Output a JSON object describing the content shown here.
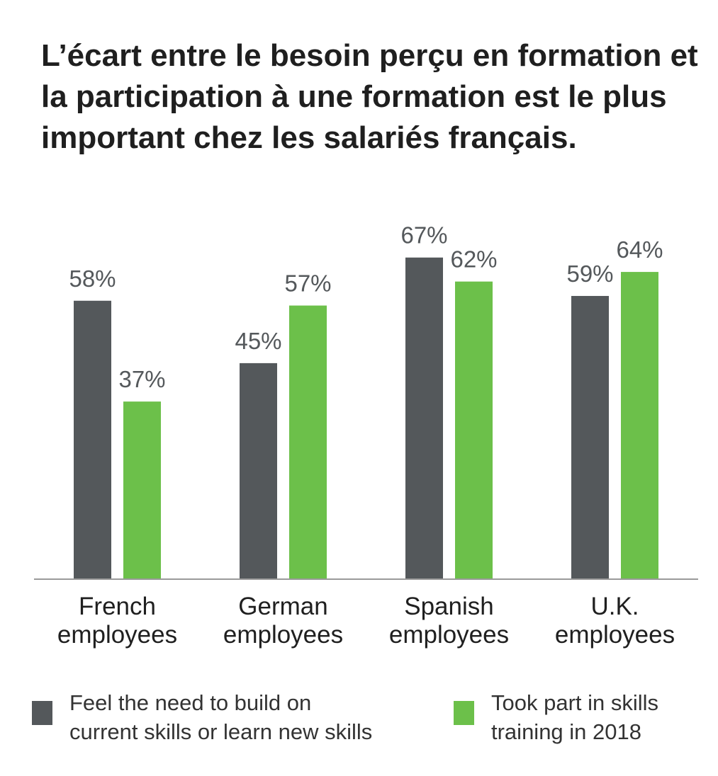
{
  "title": "L’écart entre le besoin perçu en formation et la participation à une formation est le plus important chez les salariés français.",
  "colors": {
    "series1": "#54585b",
    "series2": "#6cc04a",
    "axis": "#9a9a9a",
    "value_label": "#54585b"
  },
  "legend_placement": "bottom",
  "chart_data": {
    "type": "bar",
    "title": "L’écart entre le besoin perçu en formation et la participation à une formation est le plus important chez les salariés français.",
    "xlabel": "",
    "ylabel": "",
    "ylim": [
      0,
      80
    ],
    "grid": false,
    "categories": [
      [
        "French",
        "employees"
      ],
      [
        "German",
        "employees"
      ],
      [
        "Spanish",
        "employees"
      ],
      [
        "U.K.",
        "employees"
      ]
    ],
    "series": [
      {
        "name": "Feel the need to build on\ncurrent skills or learn new skills",
        "values": [
          58,
          45,
          67,
          59
        ],
        "labels": [
          "58%",
          "45%",
          "67%",
          "59%"
        ]
      },
      {
        "name": "Took part in skills\ntraining in 2018",
        "values": [
          37,
          57,
          62,
          64
        ],
        "labels": [
          "37%",
          "57%",
          "62%",
          "64%"
        ]
      }
    ]
  }
}
